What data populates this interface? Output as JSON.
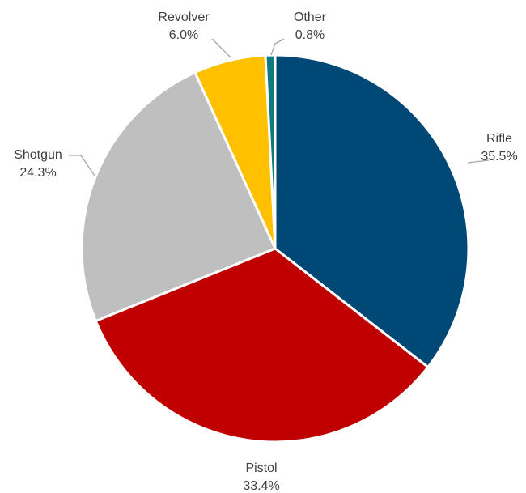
{
  "chart_data": {
    "type": "pie",
    "title": "",
    "slices": [
      {
        "label": "Rifle",
        "value": 35.5,
        "value_label": "35.5%",
        "color": "#004876"
      },
      {
        "label": "Pistol",
        "value": 33.4,
        "value_label": "33.4%",
        "color": "#c00000"
      },
      {
        "label": "Shotgun",
        "value": 24.3,
        "value_label": "24.3%",
        "color": "#bfbfbf"
      },
      {
        "label": "Revolver",
        "value": 6.0,
        "value_label": "6.0%",
        "color": "#ffc000"
      },
      {
        "label": "Other",
        "value": 0.8,
        "value_label": "0.8%",
        "color": "#0f7a84"
      }
    ],
    "start_angle": "12 o'clock",
    "direction": "clockwise",
    "legend": "none",
    "data_labels": "outside with leader lines"
  }
}
